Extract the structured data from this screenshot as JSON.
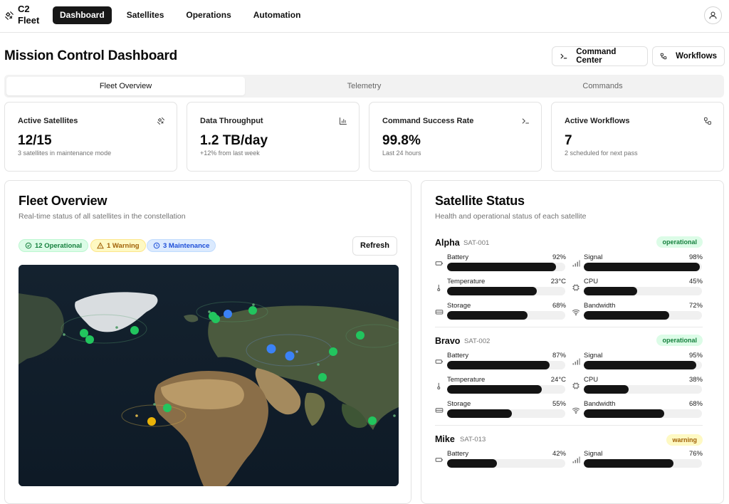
{
  "app": {
    "brand_line1": "C2",
    "brand_line2": "Fleet"
  },
  "nav": [
    {
      "label": "Dashboard",
      "active": true
    },
    {
      "label": "Satellites",
      "active": false
    },
    {
      "label": "Operations",
      "active": false
    },
    {
      "label": "Automation",
      "active": false
    }
  ],
  "header": {
    "title": "Mission Control Dashboard",
    "command_center_label": "Command Center",
    "workflows_label": "Workflows"
  },
  "tabs": [
    {
      "label": "Fleet Overview",
      "active": true
    },
    {
      "label": "Telemetry",
      "active": false
    },
    {
      "label": "Commands",
      "active": false
    }
  ],
  "stats": [
    {
      "label": "Active Satellites",
      "value": "12/15",
      "sub": "3 satellites in maintenance mode",
      "icon": "satellite-icon"
    },
    {
      "label": "Data Throughput",
      "value": "1.2 TB/day",
      "sub": "+12% from last week",
      "icon": "bar-chart-icon"
    },
    {
      "label": "Command Success Rate",
      "value": "99.8%",
      "sub": "Last 24 hours",
      "icon": "terminal-icon"
    },
    {
      "label": "Active Workflows",
      "value": "7",
      "sub": "2 scheduled for next pass",
      "icon": "workflow-icon"
    }
  ],
  "fleet": {
    "title": "Fleet Overview",
    "subtitle": "Real-time status of all satellites in the constellation",
    "badges": {
      "operational": "12 Operational",
      "warning": "1 Warning",
      "maintenance": "3 Maintenance"
    },
    "refresh_label": "Refresh"
  },
  "colors": {
    "operational": "#22c55e",
    "warning": "#eab308",
    "maintenance": "#3b82f6"
  },
  "status_panel": {
    "title": "Satellite Status",
    "subtitle": "Health and operational status of each satellite",
    "satellites": [
      {
        "name": "Alpha",
        "id": "SAT-001",
        "status": "operational",
        "metrics": {
          "battery": {
            "label": "Battery",
            "value": "92%",
            "level": 0.92
          },
          "signal": {
            "label": "Signal",
            "value": "98%",
            "level": 0.98
          },
          "temperature": {
            "label": "Temperature",
            "value": "23°C",
            "level": 0.76
          },
          "cpu": {
            "label": "CPU",
            "value": "45%",
            "level": 0.45
          },
          "storage": {
            "label": "Storage",
            "value": "68%",
            "level": 0.68
          },
          "bandwidth": {
            "label": "Bandwidth",
            "value": "72%",
            "level": 0.72
          }
        }
      },
      {
        "name": "Bravo",
        "id": "SAT-002",
        "status": "operational",
        "metrics": {
          "battery": {
            "label": "Battery",
            "value": "87%",
            "level": 0.87
          },
          "signal": {
            "label": "Signal",
            "value": "95%",
            "level": 0.95
          },
          "temperature": {
            "label": "Temperature",
            "value": "24°C",
            "level": 0.8
          },
          "cpu": {
            "label": "CPU",
            "value": "38%",
            "level": 0.38
          },
          "storage": {
            "label": "Storage",
            "value": "55%",
            "level": 0.55
          },
          "bandwidth": {
            "label": "Bandwidth",
            "value": "68%",
            "level": 0.68
          }
        }
      },
      {
        "name": "Mike",
        "id": "SAT-013",
        "status": "warning",
        "metrics": {
          "battery": {
            "label": "Battery",
            "value": "42%",
            "level": 0.42
          },
          "signal": {
            "label": "Signal",
            "value": "76%",
            "level": 0.76
          }
        }
      }
    ]
  }
}
